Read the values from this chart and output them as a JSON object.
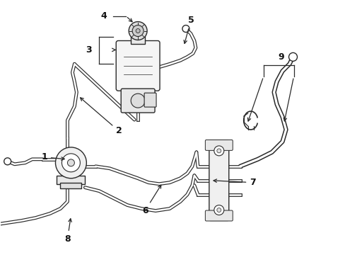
{
  "bg_color": "#ffffff",
  "line_color": "#2a2a2a",
  "figsize": [
    4.89,
    3.6
  ],
  "dpi": 100,
  "hose_lw_outer": 3.5,
  "hose_lw_inner": 1.8,
  "comp_lw": 1.0,
  "label_fontsize": 9
}
